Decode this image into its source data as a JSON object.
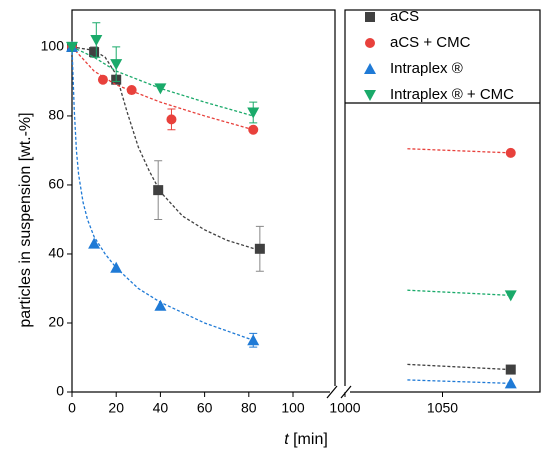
{
  "chart_data": {
    "type": "scatter",
    "ylabel": "particles in suspension [wt.-%]",
    "xlabel_var": "t",
    "xlabel_unit": "[min]",
    "ylim": [
      0,
      110.7
    ],
    "yticks": [
      0,
      20,
      40,
      60,
      80,
      100
    ],
    "xlim": [
      0,
      119
    ],
    "xticks": [
      0,
      20,
      40,
      60,
      80,
      100
    ],
    "x2lim": [
      1000,
      1100
    ],
    "x2ticks": [
      1000,
      1050
    ],
    "legend": "upper right",
    "series": [
      {
        "name": "aCS",
        "color": "#404040",
        "marker": "square",
        "x": [
          0,
          10,
          20,
          39,
          85,
          1085
        ],
        "values": [
          100,
          98.5,
          90.5,
          58.5,
          41.5,
          6.5
        ],
        "errors": [
          null,
          1.5,
          null,
          8.5,
          6.5,
          null
        ],
        "fit_x": [
          0,
          10,
          15,
          20,
          25,
          30,
          35,
          40,
          50,
          60,
          70,
          85
        ],
        "fit_y": [
          100,
          99,
          97,
          92,
          81,
          71,
          64,
          58,
          51,
          47,
          44,
          41
        ],
        "fit2_x": [
          1032,
          1085
        ],
        "fit2_y": [
          8,
          6.5
        ]
      },
      {
        "name": "aCS + CMC",
        "color": "#e8413c",
        "marker": "circle",
        "x": [
          0,
          14,
          27,
          45,
          82,
          1085
        ],
        "values": [
          100,
          90.5,
          87.5,
          79,
          76,
          69.3
        ],
        "errors": [
          null,
          null,
          null,
          3,
          null,
          null
        ],
        "fit_x": [
          0,
          10,
          20,
          40,
          60,
          82
        ],
        "fit_y": [
          100,
          93,
          89,
          84,
          80,
          76
        ],
        "fit2_x": [
          1032,
          1085
        ],
        "fit2_y": [
          70.5,
          69.3
        ]
      },
      {
        "name": "Intraplex ®",
        "color": "#1f7ad6",
        "marker": "triangle-up",
        "x": [
          0,
          10,
          20,
          40,
          82,
          1085
        ],
        "values": [
          100,
          43,
          36,
          25,
          15,
          2.5
        ],
        "errors": [
          null,
          null,
          null,
          null,
          2,
          null
        ],
        "fit_x": [
          0,
          1,
          2,
          3,
          5,
          7,
          10,
          15,
          20,
          30,
          40,
          60,
          82
        ],
        "fit_y": [
          100,
          82,
          70,
          63,
          55,
          50,
          45,
          40,
          36,
          30,
          26,
          20,
          15
        ],
        "fit2_x": [
          1032,
          1085
        ],
        "fit2_y": [
          3.5,
          2.5
        ]
      },
      {
        "name": "Intraplex ® + CMC",
        "color": "#1aaa6a",
        "marker": "triangle-down",
        "x": [
          0,
          11,
          20,
          40,
          82,
          1085
        ],
        "values": [
          100,
          102,
          95,
          88,
          81,
          28
        ],
        "errors": [
          null,
          5,
          5,
          null,
          3,
          null
        ],
        "fit_x": [
          0,
          10,
          20,
          40,
          60,
          82
        ],
        "fit_y": [
          100,
          97,
          93,
          88,
          84,
          80
        ],
        "fit2_x": [
          1032,
          1085
        ],
        "fit2_y": [
          29.5,
          28
        ]
      }
    ]
  }
}
